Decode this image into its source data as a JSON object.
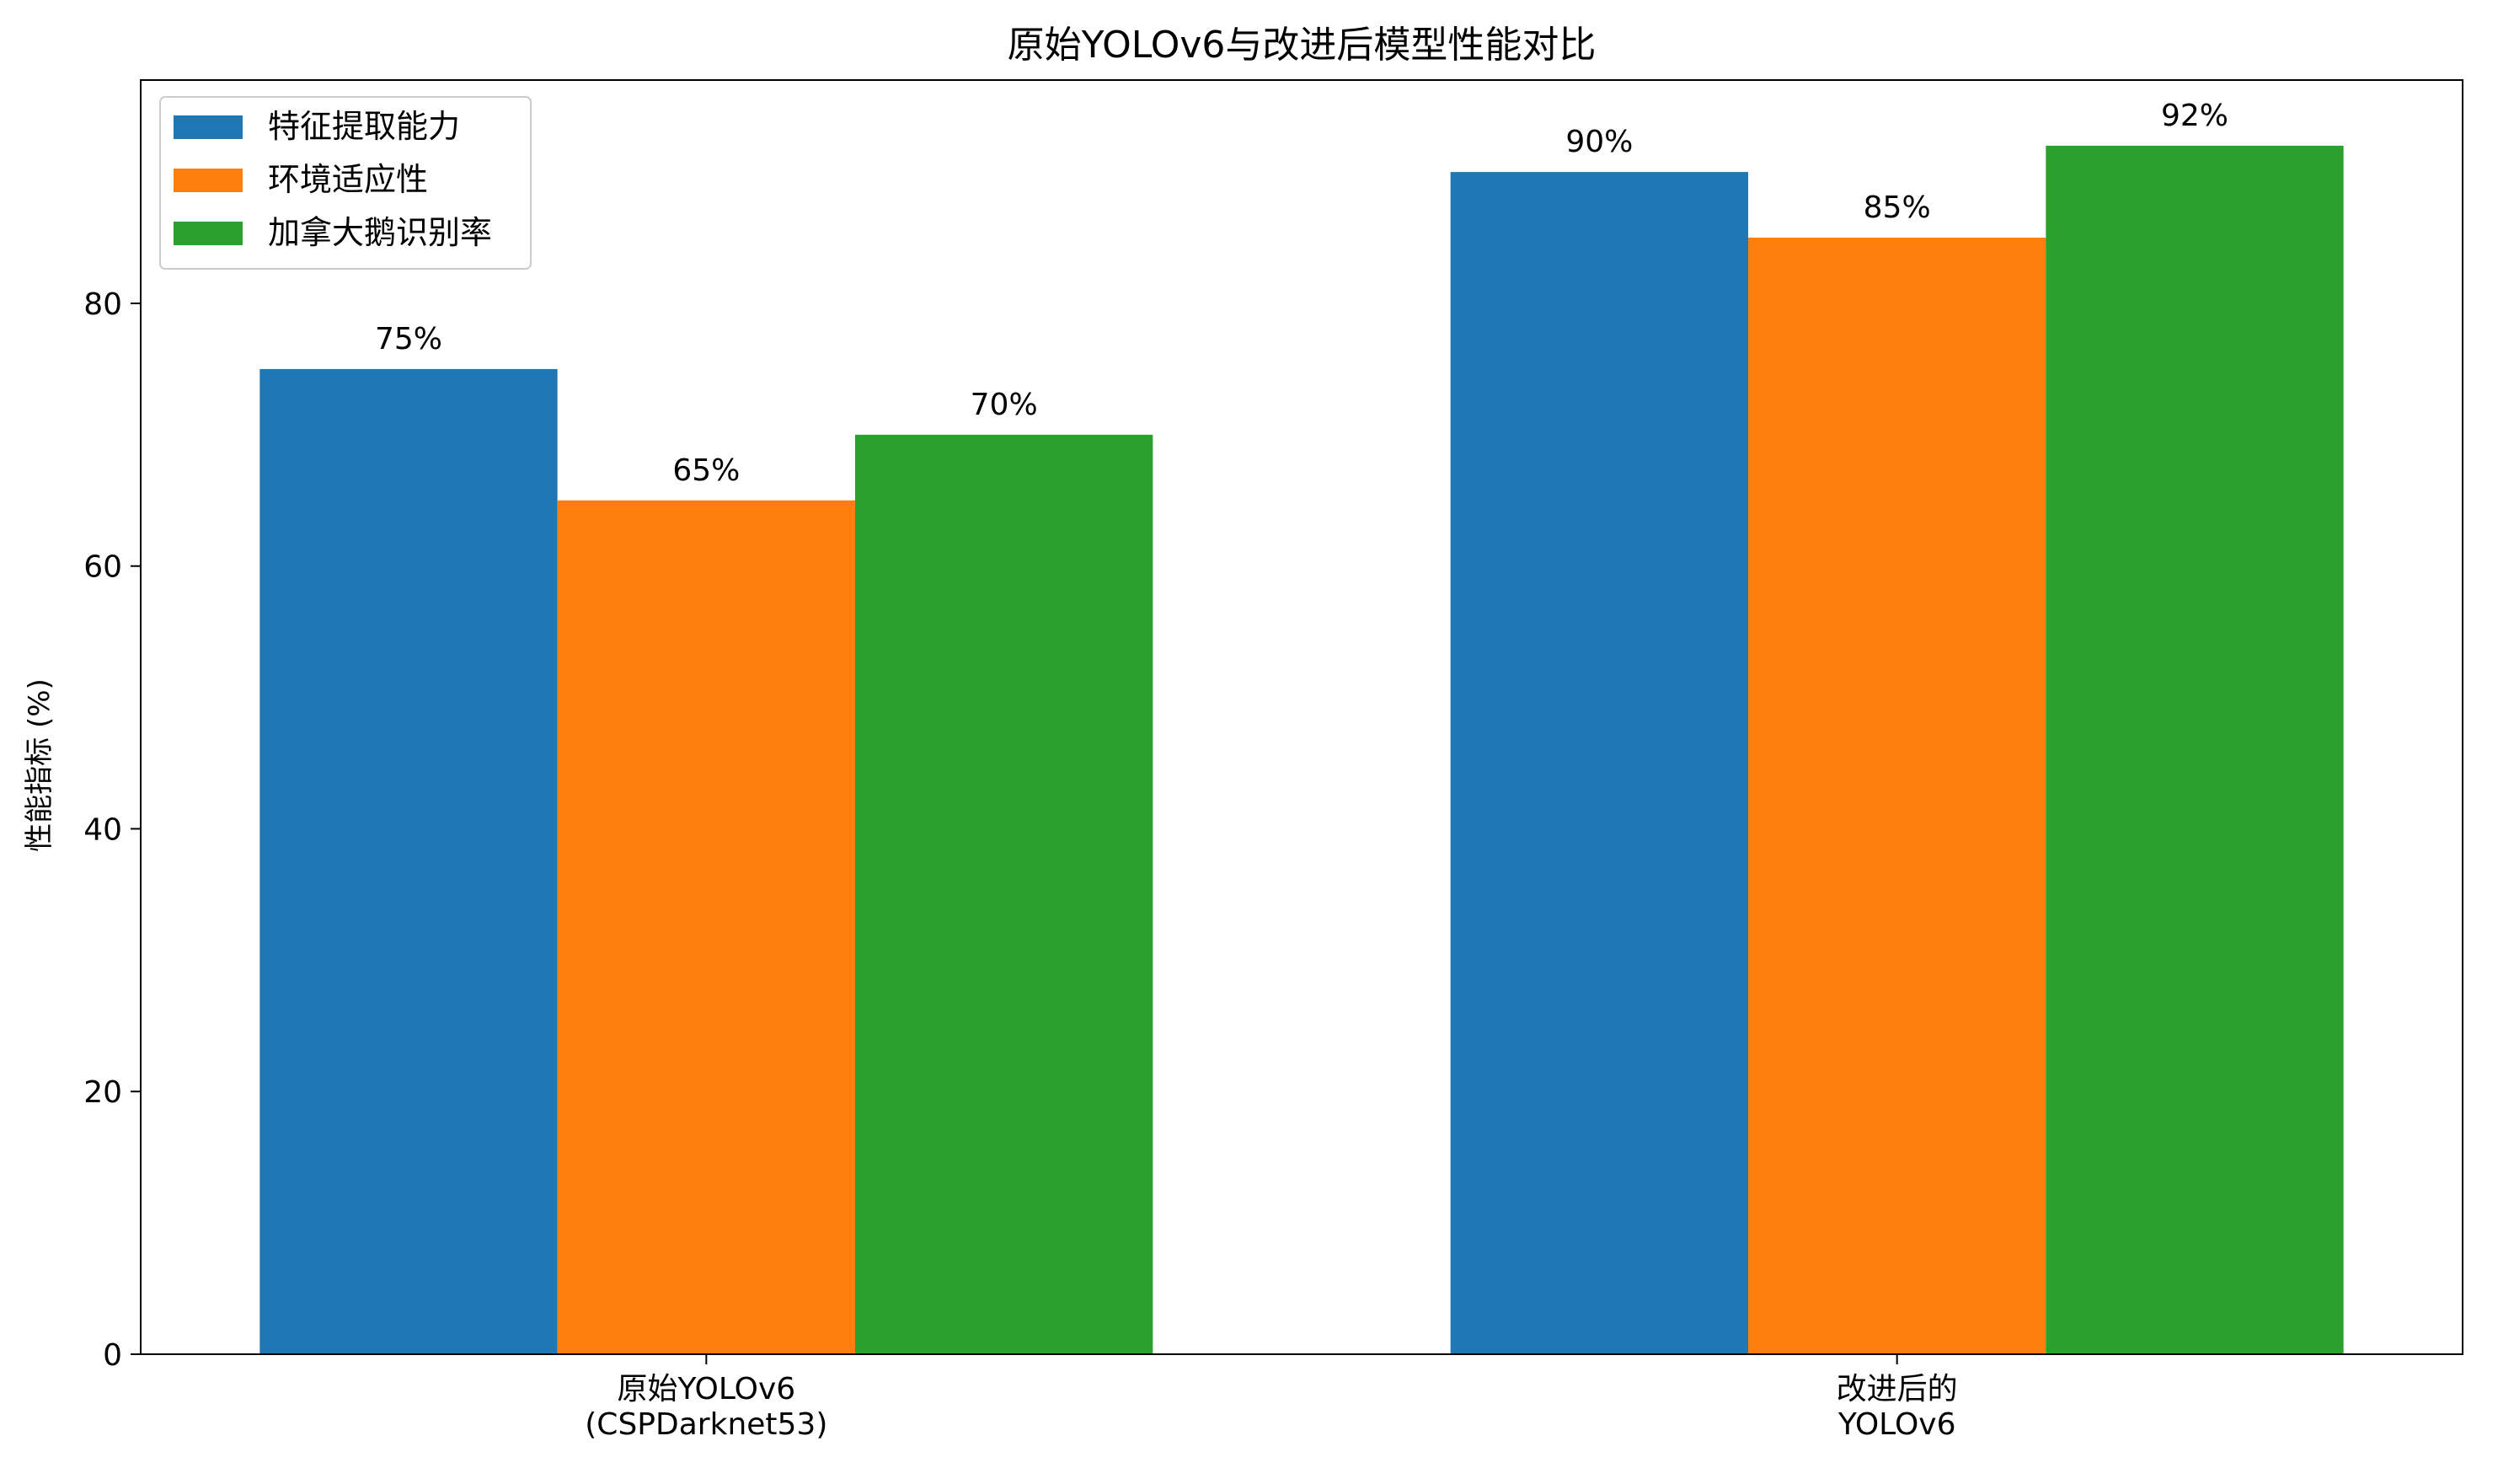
{
  "chart_data": {
    "type": "bar",
    "title": "原始YOLOv6与改进后模型性能对比",
    "xlabel": "",
    "ylabel": "性能指标 (%)",
    "ylim": [
      0,
      97
    ],
    "yticks": [
      0,
      20,
      40,
      60,
      80
    ],
    "categories": [
      [
        "原始YOLOv6",
        "(CSPDarknet53)"
      ],
      [
        "改进后的",
        "YOLOv6"
      ]
    ],
    "series": [
      {
        "name": "特征提取能力",
        "color": "#1f77b4",
        "values": [
          75,
          90
        ],
        "labels": [
          "75%",
          "90%"
        ]
      },
      {
        "name": "环境适应性",
        "color": "#ff7f0e",
        "values": [
          65,
          85
        ],
        "labels": [
          "65%",
          "85%"
        ]
      },
      {
        "name": "加拿大鹅识别率",
        "color": "#2ca02c",
        "values": [
          70,
          92
        ],
        "labels": [
          "70%",
          "92%"
        ]
      }
    ],
    "grid": false,
    "legend_position": "top-left"
  }
}
